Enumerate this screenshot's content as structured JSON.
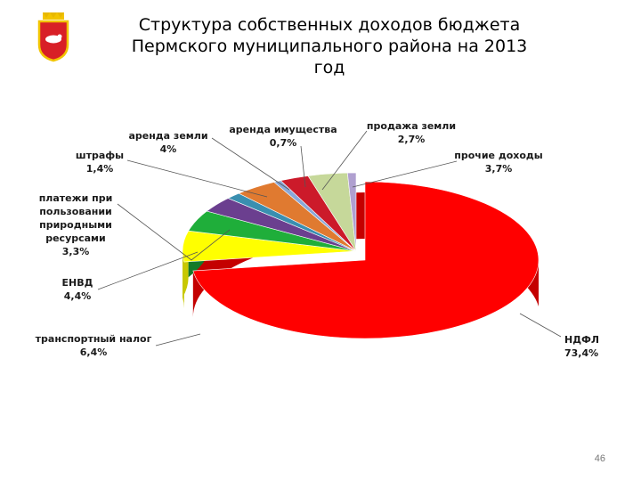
{
  "slide": {
    "title_line1": "Структура собственных доходов бюджета",
    "title_line2": "Пермского муниципального района на 2013",
    "title_line3": "год",
    "page_number": "46"
  },
  "chart_data": {
    "type": "pie",
    "title": "Структура собственных доходов бюджета Пермского муниципального района на 2013 год",
    "slices": [
      {
        "label": "НДФЛ",
        "value": 73.4,
        "value_label": "73,4%",
        "color": "#ff0000",
        "side": "#c40000"
      },
      {
        "label": "транспортный налог",
        "value": 6.4,
        "value_label": "6,4%",
        "color": "#ffff00",
        "side": "#c8c800"
      },
      {
        "label": "ЕНВД",
        "value": 4.4,
        "value_label": "4,4%",
        "color": "#1fae3a",
        "side": "#147a28"
      },
      {
        "label": "платежи при пользовании природными ресурсами",
        "value": 3.3,
        "value_label": "3,3%",
        "color": "#6b3f8f",
        "side": "#4a2b63"
      },
      {
        "label": "штрафы",
        "value": 1.4,
        "value_label": "1,4%",
        "color": "#3a8fb0",
        "side": "#286580"
      },
      {
        "label": "аренда земли",
        "value": 4,
        "value_label": "4%",
        "color": "#e07a30",
        "side": "#a85a22"
      },
      {
        "label": "аренда имущества",
        "value": 0.7,
        "value_label": "0,7%",
        "color": "#8aa8d8",
        "side": "#6480a8"
      },
      {
        "label": "продажа земли",
        "value": 2.7,
        "value_label": "2,7%",
        "color": "#cc1a2a",
        "side": "#8c1019"
      },
      {
        "label": "прочие доходы",
        "value": 3.7,
        "value_label": "3,7%",
        "color": "#c6d89a",
        "side": "#93a470"
      },
      {
        "label": "",
        "value": 0.8,
        "value_label": "",
        "color": "#b0a0d0",
        "side": "#8070a0"
      }
    ],
    "legend": "none",
    "data_labels": "outside-with-leader-lines"
  }
}
